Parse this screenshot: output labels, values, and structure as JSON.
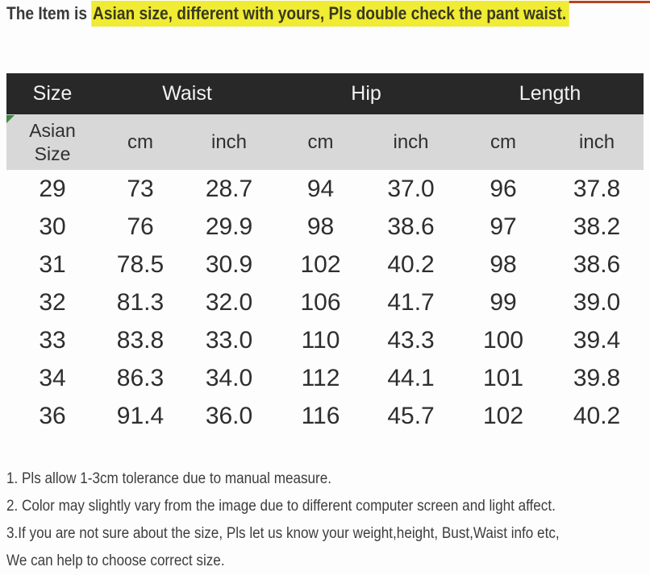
{
  "header": {
    "prefix": "The Item is ",
    "highlight": "Asian size, different with yours, Pls double check the pant waist."
  },
  "table": {
    "group_headers": [
      {
        "label": "Size",
        "span": 1
      },
      {
        "label": "Waist",
        "span": 2
      },
      {
        "label": "Hip",
        "span": 2
      },
      {
        "label": "Length",
        "span": 2
      }
    ],
    "sub_headers": [
      "Asian\nSize",
      "cm",
      "inch",
      "cm",
      "inch",
      "cm",
      "inch"
    ],
    "rows": [
      [
        "29",
        "73",
        "28.7",
        "94",
        "37.0",
        "96",
        "37.8"
      ],
      [
        "30",
        "76",
        "29.9",
        "98",
        "38.6",
        "97",
        "38.2"
      ],
      [
        "31",
        "78.5",
        "30.9",
        "102",
        "40.2",
        "98",
        "38.6"
      ],
      [
        "32",
        "81.3",
        "32.0",
        "106",
        "41.7",
        "99",
        "39.0"
      ],
      [
        "33",
        "83.8",
        "33.0",
        "110",
        "43.3",
        "100",
        "39.4"
      ],
      [
        "34",
        "86.3",
        "34.0",
        "112",
        "44.1",
        "101",
        "39.8"
      ],
      [
        "36",
        "91.4",
        "36.0",
        "116",
        "45.7",
        "102",
        "40.2"
      ]
    ]
  },
  "notes": [
    "1. Pls allow 1-3cm tolerance due to manual measure.",
    "2. Color may slightly vary from the image due to different computer screen and light affect.",
    "3.If you are not sure about the size, Pls let us know your weight,height, Bust,Waist info etc,",
    "We can help to choose correct size."
  ],
  "colors": {
    "highlight_yellow": "#f0eb33",
    "header_bg": "#282828",
    "header_text": "#f2f2f2",
    "subheader_bg": "#d8d8d8",
    "body_text": "#2e2e2e",
    "red_strip": "#b5441f",
    "marker_green": "#3c8a44"
  }
}
